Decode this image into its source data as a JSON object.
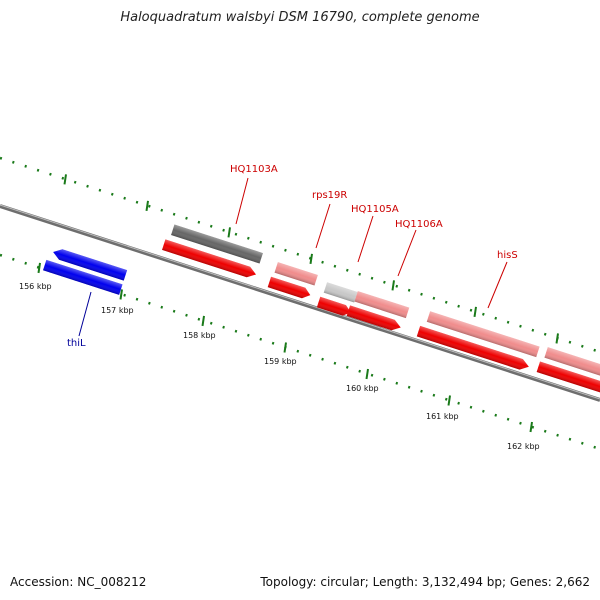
{
  "title": "Haloquadratum walsbyi DSM 16790, complete genome",
  "footer": {
    "accession": "Accession: NC_008212",
    "summary": "Topology: circular; Length: 3,132,494 bp; Genes: 2,662"
  },
  "ticks": [
    "156 kbp",
    "157 kbp",
    "158 kbp",
    "159 kbp",
    "160 kbp",
    "161 kbp",
    "162 kbp"
  ],
  "genes": {
    "hq1103a": "HQ1103A",
    "rps19r": "rps19R",
    "hq1105a": "HQ1105A",
    "hq1106a": "HQ1106A",
    "hiss": "hisS",
    "thil": "thiL"
  },
  "colors": {
    "cds_red": "#ee0000",
    "gene_pink": "#f08c8c",
    "gene_gray": "#666666",
    "gene_lightgray": "#c8c8c8",
    "gene_blue": "#0000ee",
    "gene_olive": "#6b8e23",
    "tick_green": "#1a7a1a",
    "label_red": "#cc0000",
    "label_blue": "#000099"
  }
}
